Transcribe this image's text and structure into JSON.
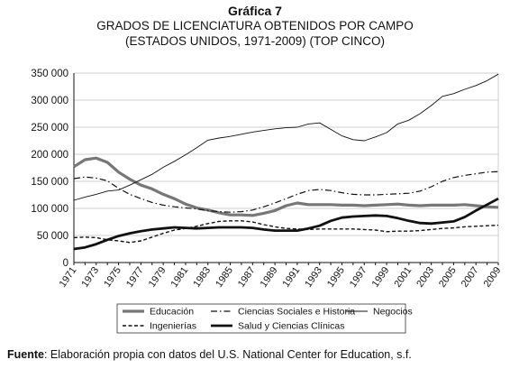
{
  "figure": {
    "number": "Gráfica 7",
    "title_line1": "GRADOS DE LICENCIATURA OBTENIDOS POR CAMPO",
    "title_line2": "(ESTADOS UNIDOS, 1971-2009) (TOP CINCO)"
  },
  "source": {
    "label": "Fuente",
    "text": ": Elaboración propia con datos del U.S. National Center for Education, s.f."
  },
  "chart_data": {
    "type": "line",
    "title": "GRADOS DE LICENCIATURA OBTENIDOS POR CAMPO (ESTADOS UNIDOS, 1971-2009) (TOP CINCO)",
    "xlabel": "",
    "ylabel": "",
    "ylim": [
      0,
      350000
    ],
    "yticks": [
      0,
      50000,
      100000,
      150000,
      200000,
      250000,
      300000,
      350000
    ],
    "ytick_labels": [
      "0",
      "50 000",
      "100 000",
      "150 000",
      "200 000",
      "250 000",
      "300 000",
      "350 000"
    ],
    "x": [
      1971,
      1972,
      1973,
      1974,
      1975,
      1976,
      1977,
      1978,
      1979,
      1980,
      1981,
      1982,
      1983,
      1984,
      1985,
      1986,
      1987,
      1988,
      1989,
      1990,
      1991,
      1992,
      1993,
      1994,
      1995,
      1996,
      1997,
      1998,
      1999,
      2000,
      2001,
      2002,
      2003,
      2004,
      2005,
      2006,
      2007,
      2008,
      2009
    ],
    "xtick_labels": [
      "1971",
      "1973",
      "1975",
      "1977",
      "1979",
      "1981",
      "1983",
      "1985",
      "1987",
      "1989",
      "1991",
      "1993",
      "1995",
      "1997",
      "1999",
      "2001",
      "2003",
      "2005",
      "2007",
      "2009"
    ],
    "grid": "horizontal",
    "legend_position": "bottom",
    "series": [
      {
        "name": "Educación",
        "color": "#777777",
        "style": "thick",
        "values": [
          177000,
          190000,
          193000,
          185000,
          167000,
          154000,
          143000,
          136000,
          126000,
          118000,
          108000,
          101000,
          97000,
          92000,
          88000,
          88000,
          87000,
          91000,
          96000,
          105000,
          110000,
          107000,
          107000,
          107000,
          106000,
          106000,
          105000,
          106000,
          107000,
          108000,
          106000,
          105000,
          106000,
          106000,
          106000,
          107000,
          105000,
          103000,
          102000
        ]
      },
      {
        "name": "Ciencias Sociales e Historia",
        "color": "#111111",
        "style": "dashdot",
        "values": [
          155000,
          158000,
          156000,
          151000,
          137000,
          126000,
          118000,
          111000,
          106000,
          103000,
          101000,
          99000,
          96000,
          94000,
          93000,
          94000,
          97000,
          103000,
          110000,
          118000,
          126000,
          133000,
          135000,
          133000,
          129000,
          126000,
          125000,
          125000,
          126000,
          127000,
          128000,
          132000,
          140000,
          150000,
          157000,
          161000,
          164000,
          167000,
          168000
        ]
      },
      {
        "name": "Negocios",
        "color": "#111111",
        "style": "thin",
        "values": [
          115000,
          121000,
          126000,
          132000,
          134000,
          143000,
          153000,
          163000,
          176000,
          187000,
          199000,
          212000,
          226000,
          230000,
          233000,
          237000,
          241000,
          244000,
          247000,
          249000,
          250000,
          256000,
          258000,
          246000,
          234000,
          227000,
          225000,
          232000,
          240000,
          256000,
          263000,
          275000,
          290000,
          307000,
          312000,
          320000,
          327000,
          336000,
          348000
        ]
      },
      {
        "name": "Ingenierías",
        "color": "#111111",
        "style": "dashed",
        "values": [
          46000,
          47000,
          46000,
          42000,
          40000,
          37000,
          40000,
          47000,
          54000,
          60000,
          63000,
          67000,
          72000,
          76000,
          77000,
          77000,
          75000,
          70000,
          66000,
          63000,
          62000,
          61000,
          62000,
          62000,
          62000,
          62000,
          61000,
          60000,
          57000,
          58000,
          58000,
          59000,
          61000,
          63000,
          64000,
          66000,
          67000,
          68000,
          69000
        ]
      },
      {
        "name": "Salud y Ciencias Clínicas",
        "color": "#111111",
        "style": "bold",
        "values": [
          25000,
          28000,
          34000,
          42000,
          49000,
          54000,
          58000,
          61000,
          63000,
          65000,
          64000,
          63000,
          64000,
          65000,
          65000,
          65000,
          64000,
          61000,
          59000,
          59000,
          59000,
          63000,
          68000,
          77000,
          83000,
          85000,
          86000,
          87000,
          86000,
          82000,
          77000,
          73000,
          72000,
          74000,
          76000,
          84000,
          96000,
          107000,
          118000
        ]
      }
    ]
  }
}
